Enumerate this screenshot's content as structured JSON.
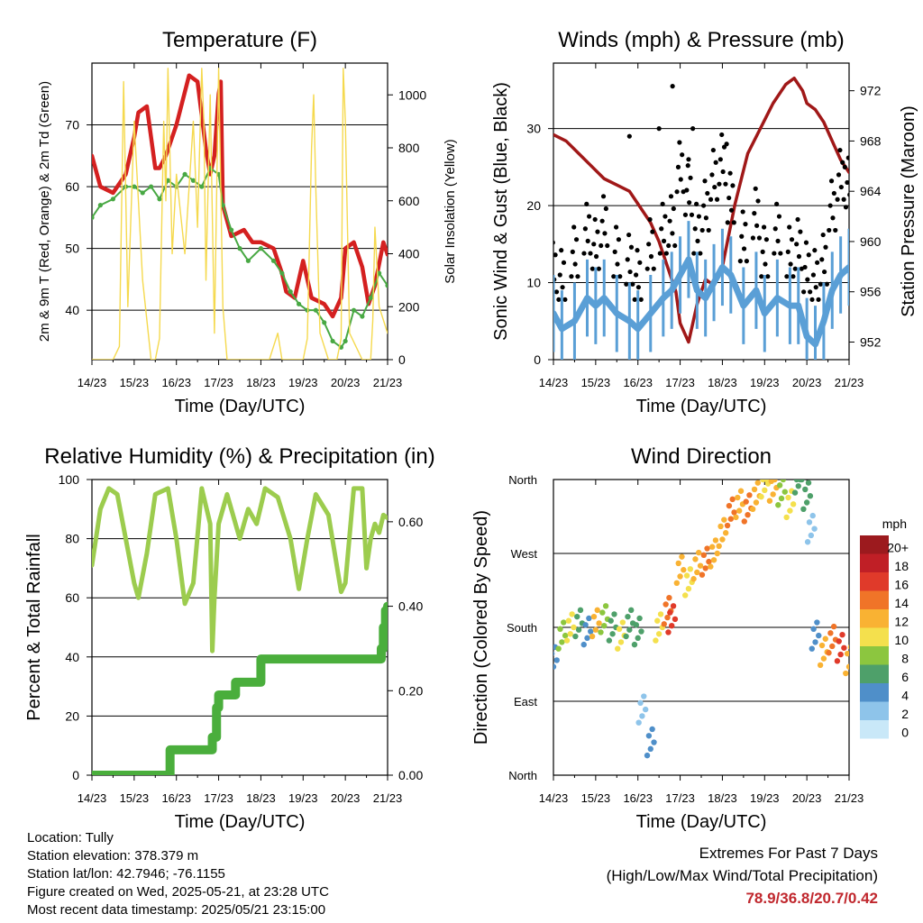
{
  "colors": {
    "temp": "#d42020",
    "dewpoint": "#48a843",
    "insolation": "#f5d94e",
    "gust": "#000000",
    "wind": "#5a9fd6",
    "pressure": "#a01818",
    "rh": "#9ccc4e",
    "precip": "#4aae3c",
    "extremes": "#c0272d"
  },
  "x_ticks": [
    "14/23",
    "15/23",
    "16/23",
    "17/23",
    "18/23",
    "19/23",
    "20/23",
    "21/23"
  ],
  "chart_data": [
    {
      "type": "line",
      "title": "Temperature (F)",
      "xlabel": "Time (Day/UTC)",
      "ylabel": "2m & 9m T (Red, Orange) & 2m Td (Green)",
      "y2label": "Solar Insolation (Yellow)",
      "ylim": [
        32,
        80
      ],
      "y2lim": [
        0,
        1120
      ],
      "yticks": [
        40,
        50,
        60,
        70
      ],
      "y2ticks": [
        0,
        200,
        400,
        600,
        800,
        1000
      ],
      "grid": true,
      "series": [
        {
          "key": "temperature",
          "axis": "left",
          "x": [
            0,
            0.2,
            0.5,
            0.8,
            1.0,
            1.1,
            1.3,
            1.4,
            1.5,
            1.6,
            1.75,
            2.0,
            2.3,
            2.5,
            2.7,
            2.8,
            2.9,
            3.0,
            3.05,
            3.1,
            3.3,
            3.6,
            3.8,
            4.0,
            4.3,
            4.5,
            4.6,
            4.8,
            5.0,
            5.2,
            5.5,
            5.7,
            5.9,
            6.0,
            6.2,
            6.4,
            6.55,
            6.7,
            6.9,
            7.0
          ],
          "y": [
            65,
            60,
            59,
            62,
            68,
            72,
            73,
            68,
            63,
            63,
            65,
            70,
            78,
            77,
            66,
            62,
            65,
            75,
            77,
            57,
            52,
            53,
            51,
            51,
            50,
            46,
            43,
            42,
            48,
            42,
            41,
            39,
            42,
            50,
            51,
            47,
            41,
            44,
            51,
            49
          ]
        },
        {
          "key": "dewpoint",
          "axis": "left",
          "x": [
            0,
            0.2,
            0.5,
            0.8,
            1.0,
            1.2,
            1.4,
            1.6,
            1.8,
            2.0,
            2.2,
            2.4,
            2.6,
            2.8,
            3.0,
            3.1,
            3.3,
            3.5,
            3.7,
            4.0,
            4.3,
            4.5,
            4.7,
            4.9,
            5.1,
            5.3,
            5.5,
            5.7,
            5.9,
            6.0,
            6.2,
            6.4,
            6.6,
            6.8,
            7.0
          ],
          "y": [
            55,
            57,
            58,
            60,
            60,
            59,
            60,
            58,
            61,
            60,
            62,
            61,
            60,
            63,
            62,
            57,
            53,
            50,
            48,
            50,
            48,
            46,
            43,
            41,
            40,
            40,
            38,
            35,
            34,
            35,
            40,
            39,
            42,
            46,
            44
          ]
        },
        {
          "key": "insolation",
          "axis": "right",
          "x": [
            0,
            0.5,
            0.65,
            0.75,
            0.85,
            1.0,
            1.1,
            1.2,
            1.4,
            1.5,
            1.6,
            1.7,
            1.75,
            1.8,
            1.9,
            2.0,
            2.2,
            2.4,
            2.5,
            2.6,
            2.65,
            2.7,
            2.8,
            2.9,
            3.0,
            3.1,
            3.2,
            3.5,
            3.7,
            4.0,
            4.2,
            4.3,
            4.4,
            4.5,
            4.6,
            4.9,
            5.0,
            5.1,
            5.2,
            5.25,
            5.3,
            5.4,
            5.6,
            5.8,
            5.9,
            5.95,
            6.0,
            6.1,
            6.4,
            6.6,
            6.65,
            6.7,
            6.8,
            7.0
          ],
          "y": [
            0,
            0,
            50,
            1050,
            200,
            900,
            600,
            300,
            0,
            0,
            80,
            900,
            600,
            1100,
            400,
            700,
            400,
            900,
            500,
            1100,
            900,
            300,
            1000,
            100,
            1100,
            200,
            0,
            0,
            0,
            0,
            0,
            50,
            100,
            0,
            0,
            0,
            0,
            80,
            800,
            1000,
            650,
            100,
            0,
            0,
            80,
            1100,
            900,
            100,
            0,
            0,
            150,
            500,
            200,
            100
          ]
        }
      ]
    },
    {
      "type": "scatter",
      "title": "Winds (mph) & Pressure (mb)",
      "xlabel": "Time (Day/UTC)",
      "ylabel": "Sonic Wind & Gust (Blue, Black)",
      "y2label": "Station Pressure (Maroon)",
      "ylim": [
        0,
        38.5
      ],
      "y2lim": [
        950.6,
        974.2
      ],
      "yticks": [
        0,
        10,
        20,
        30
      ],
      "y2ticks": [
        952,
        956,
        960,
        964,
        968,
        972
      ],
      "grid": true,
      "series": [
        {
          "key": "pressure",
          "axis": "right",
          "style": "line",
          "x": [
            0,
            0.3,
            0.6,
            0.9,
            1.2,
            1.5,
            1.8,
            2.0,
            2.3,
            2.5,
            2.7,
            2.9,
            3.0,
            3.2,
            3.4,
            3.6,
            3.8,
            4.0,
            4.3,
            4.6,
            4.9,
            5.2,
            5.5,
            5.7,
            5.9,
            6.0,
            6.2,
            6.4,
            6.6,
            6.8,
            7.0
          ],
          "y": [
            968.5,
            968,
            967,
            966,
            965,
            964.5,
            964,
            963,
            961.5,
            960,
            958,
            956,
            953.5,
            952,
            955,
            957,
            956.5,
            958,
            963,
            967,
            969,
            971,
            972.5,
            973,
            972,
            971,
            970.5,
            969.5,
            968,
            966.5,
            965.5
          ]
        },
        {
          "key": "gust",
          "axis": "left",
          "style": "points",
          "x": [
            0,
            0.2,
            0.5,
            0.8,
            1.0,
            1.2,
            1.5,
            1.8,
            2.0,
            2.3,
            2.6,
            2.8,
            3.0,
            3.2,
            3.4,
            3.6,
            3.8,
            4.0,
            4.2,
            4.5,
            4.8,
            5.0,
            5.3,
            5.6,
            5.8,
            6.0,
            6.2,
            6.4,
            6.6,
            6.8,
            7.0
          ],
          "y": [
            12,
            11,
            14,
            17,
            15,
            18,
            14,
            13,
            11,
            15,
            17,
            18,
            25,
            22,
            17,
            20,
            24,
            26,
            21,
            16,
            19,
            14,
            17,
            14,
            15,
            12,
            11,
            13,
            20,
            24,
            23
          ],
          "extra": [
            [
              2.82,
              35.5
            ],
            [
              2.5,
              30
            ],
            [
              3.3,
              30
            ],
            [
              1.8,
              29
            ],
            [
              6.9,
              25
            ],
            [
              3.2,
              26
            ],
            [
              4.1,
              28
            ]
          ]
        },
        {
          "key": "wind",
          "axis": "left",
          "style": "band",
          "x": [
            0,
            0.2,
            0.5,
            0.8,
            1.0,
            1.2,
            1.5,
            1.8,
            2.0,
            2.3,
            2.6,
            2.8,
            3.0,
            3.2,
            3.4,
            3.6,
            3.8,
            4.0,
            4.2,
            4.5,
            4.8,
            5.0,
            5.3,
            5.6,
            5.8,
            6.0,
            6.2,
            6.4,
            6.6,
            6.8,
            7.0
          ],
          "y": [
            6,
            4,
            5,
            8,
            7,
            8,
            6,
            5,
            4,
            6,
            8,
            9,
            11,
            13,
            9,
            8,
            10,
            12,
            11,
            7,
            9,
            6,
            8,
            7,
            7,
            3,
            2,
            5,
            9,
            11,
            12
          ]
        }
      ]
    },
    {
      "type": "line",
      "title": "Relative Humidity (%) & Precipitation (in)",
      "xlabel": "Time (Day/UTC)",
      "ylabel": "Percent & Total Rainfall",
      "ylim": [
        0,
        100
      ],
      "y2lim": [
        0,
        0.7
      ],
      "yticks": [
        0,
        20,
        40,
        60,
        80,
        100
      ],
      "y2ticks": [
        "0.00",
        "0.20",
        "0.40",
        "0.60"
      ],
      "y2tickvals": [
        0,
        0.2,
        0.4,
        0.6
      ],
      "grid": true,
      "series": [
        {
          "key": "rh",
          "axis": "left",
          "x": [
            0,
            0.2,
            0.4,
            0.6,
            0.8,
            1.0,
            1.1,
            1.3,
            1.5,
            1.8,
            2.0,
            2.2,
            2.4,
            2.6,
            2.8,
            2.85,
            2.9,
            3.0,
            3.2,
            3.5,
            3.7,
            3.9,
            4.1,
            4.4,
            4.7,
            4.9,
            5.1,
            5.3,
            5.6,
            5.9,
            6.0,
            6.2,
            6.4,
            6.5,
            6.6,
            6.7,
            6.8,
            6.9,
            7.0
          ],
          "y": [
            71,
            90,
            97,
            95,
            80,
            65,
            60,
            75,
            95,
            97,
            80,
            58,
            65,
            97,
            85,
            42,
            60,
            85,
            95,
            80,
            90,
            85,
            97,
            94,
            80,
            63,
            80,
            95,
            88,
            62,
            65,
            97,
            97,
            70,
            80,
            85,
            82,
            88,
            87
          ]
        },
        {
          "key": "precip",
          "axis": "right",
          "style": "step",
          "x": [
            0,
            1.8,
            1.85,
            2.8,
            2.85,
            2.95,
            3.0,
            3.3,
            3.4,
            3.9,
            4.0,
            6.8,
            6.85,
            6.9,
            6.95,
            7.0
          ],
          "y": [
            0,
            0,
            0.06,
            0.06,
            0.09,
            0.16,
            0.19,
            0.19,
            0.22,
            0.22,
            0.275,
            0.275,
            0.3,
            0.35,
            0.39,
            0.4
          ]
        }
      ]
    },
    {
      "type": "scatter",
      "title": "Wind Direction",
      "xlabel": "Time (Day/UTC)",
      "ylabel": "Direction (Colored By Speed)",
      "ylim": [
        0,
        360
      ],
      "ytick_labels": [
        "North",
        "East",
        "South",
        "West",
        "North"
      ],
      "ytick_values": [
        0,
        90,
        180,
        270,
        360
      ],
      "grid": true,
      "series": [
        {
          "key": "direction",
          "x": [
            0,
            0.2,
            0.4,
            0.6,
            0.8,
            1.0,
            1.2,
            1.4,
            1.6,
            1.8,
            2.0,
            2.1,
            2.3,
            2.5,
            2.7,
            2.8,
            3.0,
            3.2,
            3.4,
            3.6,
            3.8,
            4.0,
            4.2,
            4.4,
            4.6,
            4.8,
            5.0,
            5.2,
            5.4,
            5.6,
            5.8,
            6.0,
            6.1,
            6.2,
            6.4,
            6.6,
            6.8,
            7.0
          ],
          "y": [
            140,
            170,
            180,
            185,
            175,
            185,
            190,
            180,
            170,
            185,
            175,
            80,
            40,
            180,
            200,
            190,
            250,
            235,
            255,
            260,
            270,
            295,
            320,
            330,
            325,
            340,
            355,
            350,
            345,
            330,
            360,
            340,
            300,
            170,
            150,
            165,
            155,
            140
          ],
          "speed": [
            4,
            8,
            10,
            6,
            4,
            12,
            8,
            6,
            10,
            6,
            6,
            2,
            3,
            10,
            14,
            16,
            12,
            10,
            12,
            14,
            12,
            12,
            14,
            12,
            14,
            12,
            10,
            12,
            8,
            10,
            6,
            6,
            2,
            4,
            12,
            14,
            16,
            12
          ]
        }
      ],
      "legend": {
        "title": "mph",
        "labels": [
          "20+",
          "18",
          "16",
          "14",
          "12",
          "10",
          "8",
          "6",
          "4",
          "2",
          "0"
        ]
      }
    }
  ],
  "info": {
    "location": "Location: Tully",
    "elevation": "Station elevation: 378.379 m",
    "latlon": "Station lat/lon: 42.7946; -76.1155",
    "created": "Figure created on Wed, 2025-05-21, at 23:28 UTC",
    "timestamp": "Most recent data timestamp: 2025/05/21 23:15:00"
  },
  "extremes": {
    "title": "Extremes For Past 7 Days",
    "subtitle": "(High/Low/Max Wind/Total Precipitation)",
    "values": "78.9/36.8/20.7/0.42"
  }
}
